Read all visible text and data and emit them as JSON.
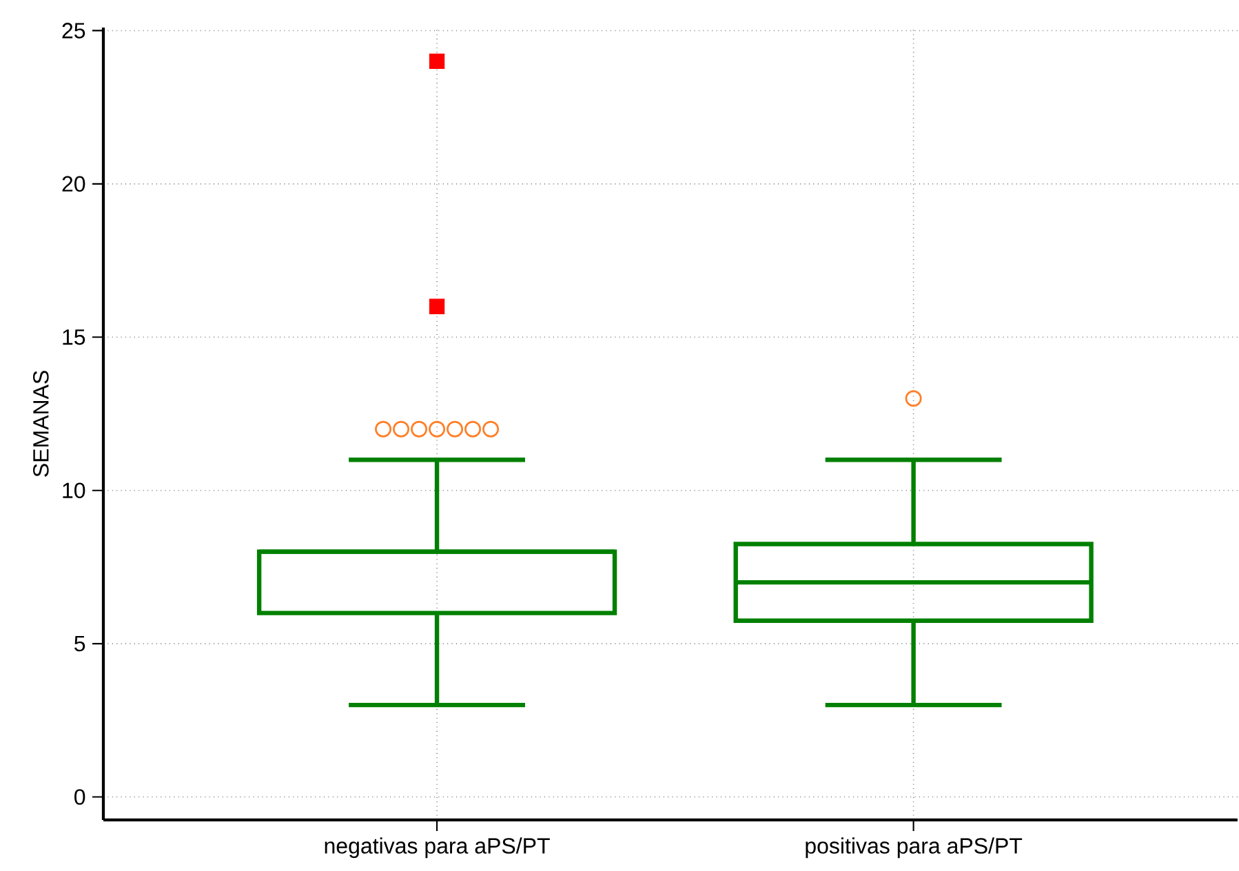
{
  "chart_data": {
    "type": "box",
    "ylabel": "SEMANAS",
    "categories": [
      "negativas para aPS/PT",
      "positivas para aPS/PT"
    ],
    "boxes": [
      {
        "low": 3,
        "q1": 6,
        "median": 8,
        "q3": 8,
        "high": 11,
        "outliers": [
          12,
          12,
          12,
          12,
          12,
          12,
          12,
          16,
          24
        ]
      },
      {
        "low": 3,
        "q1": 5.75,
        "median": 7,
        "q3": 8.25,
        "high": 11,
        "outliers": [
          13
        ]
      }
    ],
    "color": "#008000",
    "ylim": [
      -0.75,
      25.1
    ],
    "yticks": [
      0,
      5,
      10,
      15,
      20,
      25
    ],
    "grid": true
  }
}
